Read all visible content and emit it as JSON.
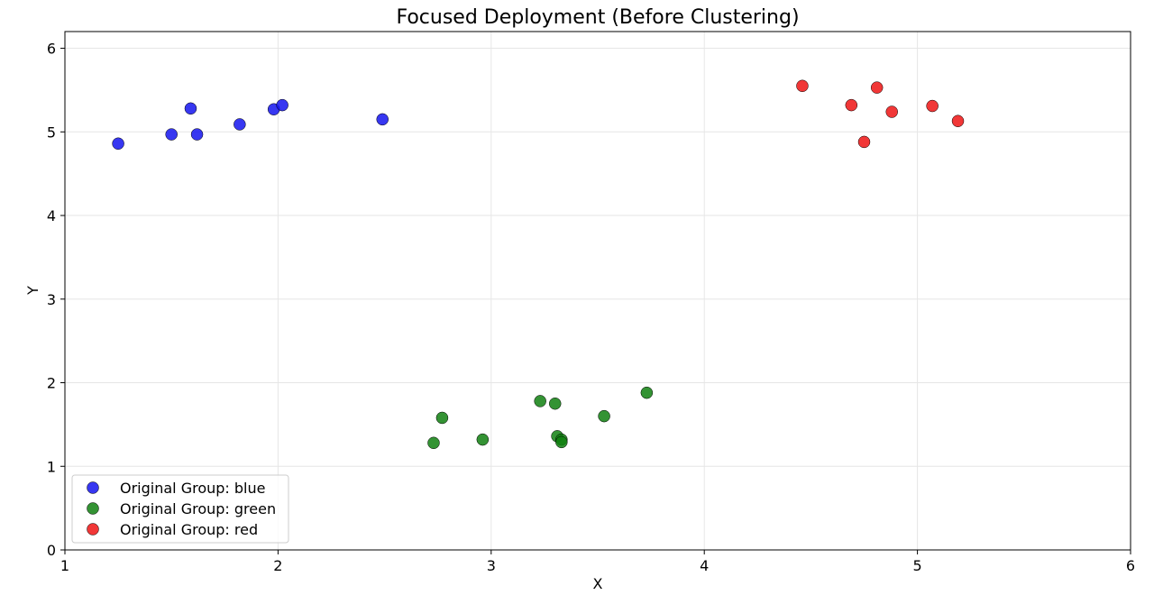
{
  "chart_data": {
    "type": "scatter",
    "title": "Focused Deployment (Before Clustering)",
    "xlabel": "X",
    "ylabel": "Y",
    "xlim": [
      1,
      6
    ],
    "ylim": [
      0,
      6.2
    ],
    "xticks": [
      "1",
      "2",
      "3",
      "4",
      "5",
      "6"
    ],
    "yticks": [
      "0",
      "1",
      "2",
      "3",
      "4",
      "5",
      "6"
    ],
    "grid": true,
    "legend_position": "bottom-left",
    "series": [
      {
        "name": "Original Group: blue",
        "color": "#1414ee",
        "x": [
          1.25,
          1.5,
          1.59,
          1.62,
          1.82,
          1.98,
          2.02,
          2.49
        ],
        "y": [
          4.86,
          4.97,
          5.28,
          4.97,
          5.09,
          5.27,
          5.32,
          5.15
        ]
      },
      {
        "name": "Original Group: green",
        "color": "#118011",
        "x": [
          2.73,
          2.77,
          2.96,
          3.23,
          3.3,
          3.31,
          3.33,
          3.33,
          3.53,
          3.73
        ],
        "y": [
          1.28,
          1.58,
          1.32,
          1.78,
          1.75,
          1.36,
          1.32,
          1.29,
          1.6,
          1.88
        ]
      },
      {
        "name": "Original Group: red",
        "color": "#ee1414",
        "x": [
          4.46,
          4.69,
          4.75,
          4.81,
          4.88,
          5.07,
          5.19
        ],
        "y": [
          5.55,
          5.32,
          4.88,
          5.53,
          5.24,
          5.31,
          5.13
        ]
      }
    ]
  }
}
